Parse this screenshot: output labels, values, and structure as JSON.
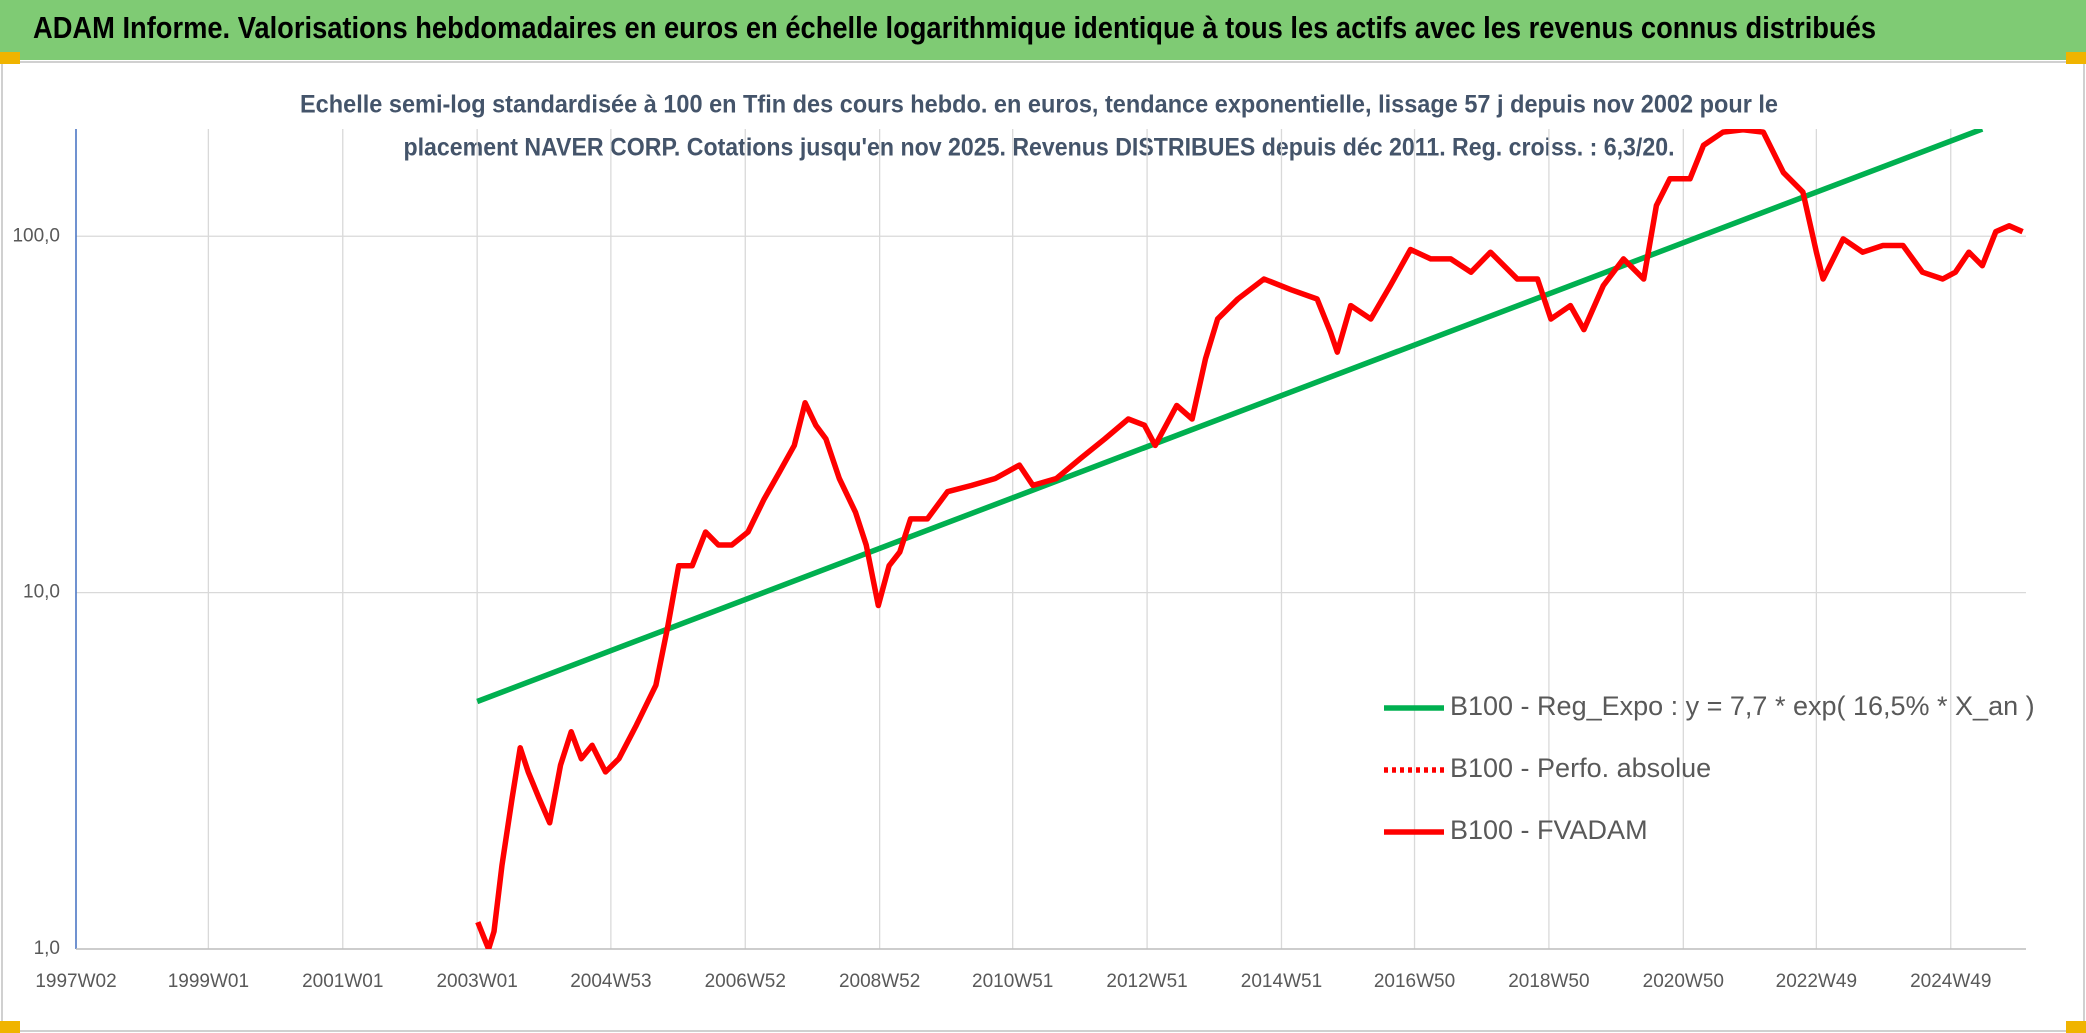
{
  "chart_data": {
    "type": "line",
    "title": "ADAM Informe. Valorisations hebdomadaires en euros en échelle logarithmique identique à tous les actifs avec les revenus connus distribués",
    "subtitle": [
      "Echelle semi-log standardisée à 100 en Tfin des cours hebdo. en euros, tendance exponentielle, lissage 57 j depuis nov 2002 pour le",
      "placement NAVER CORP. Cotations jusqu'en nov 2025. Revenus DISTRIBUES depuis déc 2011. Reg. croiss. : 6,3/20."
    ],
    "yscale": "log",
    "ylim": [
      1,
      200
    ],
    "yticks": [
      {
        "value": 1,
        "label": "1,0"
      },
      {
        "value": 10,
        "label": "10,0"
      },
      {
        "value": 100,
        "label": "100,0"
      }
    ],
    "xlim": [
      1997.03,
      2026.05
    ],
    "xticks": [
      {
        "value": 1997.03,
        "label": "1997W02"
      },
      {
        "value": 1999.0,
        "label": "1999W01"
      },
      {
        "value": 2001.0,
        "label": "2001W01"
      },
      {
        "value": 2003.0,
        "label": "2003W01"
      },
      {
        "value": 2004.99,
        "label": "2004W53"
      },
      {
        "value": 2006.99,
        "label": "2006W52"
      },
      {
        "value": 2008.99,
        "label": "2008W52"
      },
      {
        "value": 2010.97,
        "label": "2010W51"
      },
      {
        "value": 2012.97,
        "label": "2012W51"
      },
      {
        "value": 2014.97,
        "label": "2014W51"
      },
      {
        "value": 2016.95,
        "label": "2016W50"
      },
      {
        "value": 2018.95,
        "label": "2018W50"
      },
      {
        "value": 2020.95,
        "label": "2020W50"
      },
      {
        "value": 2022.93,
        "label": "2022W49"
      },
      {
        "value": 2024.93,
        "label": "2024W49"
      }
    ],
    "grid": true,
    "legend": "lower-right",
    "series": [
      {
        "name": "B100 - Reg_Expo : y = 7,7 * exp( 16,5% *  X_an )",
        "color": "#00b050",
        "style": "solid",
        "x": [
          2003.0,
          2025.4
        ],
        "values": [
          4.95,
          200
        ]
      },
      {
        "name": "B100 - Perfo. absolue",
        "color": "#ff0000",
        "style": "dotted",
        "x": [],
        "values": []
      },
      {
        "name": "B100 - FVADAM",
        "color": "#ff0000",
        "style": "solid",
        "x": [
          2003.01,
          2003.09,
          2003.17,
          2003.25,
          2003.37,
          2003.52,
          2003.64,
          2003.76,
          2003.92,
          2004.08,
          2004.24,
          2004.4,
          2004.55,
          2004.71,
          2004.91,
          2005.11,
          2005.37,
          2005.66,
          2005.84,
          2006.0,
          2006.2,
          2006.4,
          2006.59,
          2006.79,
          2007.03,
          2007.27,
          2007.5,
          2007.72,
          2007.88,
          2008.04,
          2008.19,
          2008.39,
          2008.63,
          2008.79,
          2008.97,
          2009.13,
          2009.29,
          2009.45,
          2009.7,
          2010.0,
          2010.36,
          2010.71,
          2011.07,
          2011.27,
          2011.62,
          2011.98,
          2012.34,
          2012.69,
          2012.93,
          2013.09,
          2013.41,
          2013.64,
          2013.84,
          2014.02,
          2014.32,
          2014.71,
          2015.11,
          2015.5,
          2015.7,
          2015.8,
          2016.0,
          2016.3,
          2016.59,
          2016.89,
          2017.19,
          2017.49,
          2017.79,
          2018.08,
          2018.48,
          2018.78,
          2018.98,
          2019.27,
          2019.47,
          2019.76,
          2020.06,
          2020.36,
          2020.55,
          2020.75,
          2021.05,
          2021.25,
          2021.54,
          2021.84,
          2022.14,
          2022.44,
          2022.73,
          2022.93,
          2023.03,
          2023.33,
          2023.62,
          2023.92,
          2024.22,
          2024.51,
          2024.81,
          2025.0,
          2025.2,
          2025.4,
          2025.6,
          2025.8,
          2026.0
        ],
        "values": [
          1.19,
          1.09,
          1.0,
          1.12,
          1.72,
          2.65,
          3.67,
          3.14,
          2.65,
          2.26,
          3.28,
          4.07,
          3.42,
          3.73,
          3.14,
          3.42,
          4.25,
          5.5,
          8.1,
          11.9,
          11.9,
          14.8,
          13.6,
          13.6,
          14.8,
          18.3,
          21.8,
          25.9,
          34.1,
          29.5,
          27.0,
          20.9,
          16.8,
          13.6,
          9.2,
          11.9,
          13.0,
          16.1,
          16.1,
          19.2,
          20.0,
          20.9,
          22.8,
          20.0,
          20.9,
          23.8,
          27.0,
          30.7,
          29.5,
          25.9,
          33.5,
          30.7,
          45.3,
          58.6,
          66.7,
          75.9,
          70.8,
          66.7,
          53.8,
          47.3,
          63.9,
          58.6,
          72.7,
          91.8,
          86.4,
          86.4,
          79.3,
          90.2,
          75.9,
          75.9,
          58.6,
          63.9,
          54.7,
          72.7,
          86.4,
          75.9,
          122,
          145,
          145,
          180,
          196,
          199,
          196,
          151,
          133,
          90.2,
          75.9,
          98.3,
          90.2,
          94.2,
          94.2,
          79.3,
          75.9,
          79.3,
          90.2,
          82.7,
          103,
          107,
          103
        ]
      }
    ]
  }
}
